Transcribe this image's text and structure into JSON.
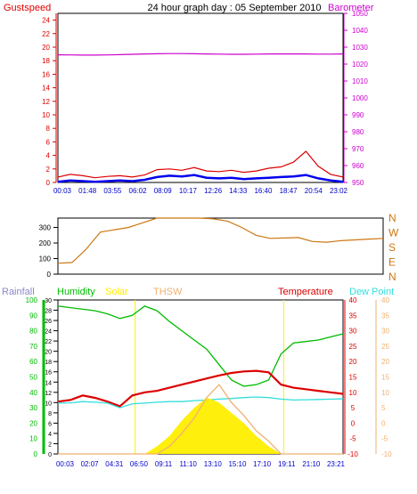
{
  "chart_data": [
    {
      "type": "line",
      "title": "24 hour graph day : 05 September 2010",
      "left_axis_label": "Gustspeed",
      "right_axis_label": "Barometer",
      "left_ticks": [
        "0",
        "2",
        "4",
        "6",
        "8",
        "10",
        "12",
        "14",
        "16",
        "18",
        "20",
        "22",
        "24"
      ],
      "right_ticks": [
        "950",
        "960",
        "970",
        "980",
        "990",
        "1000",
        "1010",
        "1020",
        "1030",
        "1040",
        "1050"
      ],
      "x_ticks": [
        "00:03",
        "01:48",
        "03:55",
        "06:02",
        "08:09",
        "10:17",
        "12:26",
        "14:33",
        "16:40",
        "18:47",
        "20:54",
        "23:02"
      ],
      "ylim_left": [
        0,
        25
      ],
      "ylim_right": [
        950,
        1050
      ],
      "colors": {
        "gust": "#dd0000",
        "wind": "#0000ee",
        "barometer": "#cc00cc"
      },
      "series": [
        {
          "key": "barometer",
          "values": [
            1025.5,
            1025.4,
            1025.3,
            1025.3,
            1025.4,
            1025.6,
            1025.8,
            1026,
            1026.1,
            1026.2,
            1026.2,
            1026.1,
            1026,
            1025.9,
            1025.8,
            1025.8,
            1025.9,
            1026,
            1026,
            1026,
            1026,
            1025.9,
            1025.9,
            1026
          ]
        },
        {
          "key": "gust",
          "values": [
            0.8,
            1.2,
            1.0,
            0.7,
            0.9,
            1.0,
            0.8,
            1.1,
            1.9,
            2.0,
            1.8,
            2.2,
            1.7,
            1.6,
            1.8,
            1.5,
            1.7,
            2.1,
            2.3,
            3.0,
            4.6,
            2.4,
            1.2,
            0.8
          ]
        },
        {
          "key": "wind",
          "values": [
            0.1,
            0.3,
            0.2,
            0.1,
            0.2,
            0.3,
            0.2,
            0.4,
            0.8,
            1.0,
            0.9,
            1.1,
            0.7,
            0.6,
            0.7,
            0.5,
            0.6,
            0.7,
            0.8,
            0.9,
            1.1,
            0.6,
            0.3,
            0.1
          ]
        }
      ]
    },
    {
      "type": "line",
      "left_ticks": [
        "0",
        "100",
        "200",
        "300"
      ],
      "direction_labels": [
        "N",
        "W",
        "S",
        "E",
        "N"
      ],
      "ylim": [
        0,
        360
      ],
      "color": "#cc7711",
      "series": [
        {
          "key": "direction",
          "values": [
            70,
            75,
            160,
            270,
            285,
            300,
            330,
            360,
            360,
            360,
            360,
            355,
            340,
            300,
            250,
            230,
            232,
            235,
            210,
            205,
            215,
            220,
            225,
            230
          ]
        }
      ]
    },
    {
      "type": "line",
      "legend": {
        "rainfall": "Rainfall",
        "humidity": "Humidity",
        "solar": "Solar",
        "thsw": "THSW",
        "temperature": "Temperature",
        "dewpoint": "Dew Point"
      },
      "left_ticks": [
        "0",
        "10",
        "20",
        "30",
        "40",
        "50",
        "60",
        "70",
        "80",
        "90",
        "100"
      ],
      "inner_ticks": [
        "0",
        "2",
        "4",
        "6",
        "8",
        "10",
        "12",
        "14",
        "16",
        "18",
        "20",
        "22",
        "24",
        "26",
        "28",
        "30"
      ],
      "right_ticks": [
        "-10",
        "-5",
        "0",
        "5",
        "10",
        "15",
        "20",
        "25",
        "30",
        "35",
        "40"
      ],
      "x_ticks": [
        "00:03",
        "02:07",
        "04:31",
        "06:50",
        "09:11",
        "11:10",
        "13:10",
        "15:10",
        "17:10",
        "19:11",
        "21:10",
        "23:21"
      ],
      "ylim_humidity": [
        0,
        100
      ],
      "ylim_temperature": [
        -10,
        40
      ],
      "colors": {
        "rainfall": "#8888cc",
        "humidity": "#00bb00",
        "solar": "#ffee00",
        "thsw": "#f0b070",
        "temperature": "#dd0000",
        "dewpoint": "#33dddd"
      },
      "series": [
        {
          "key": "humidity",
          "values": [
            96,
            95,
            94,
            93,
            91,
            88,
            90,
            96,
            93,
            86,
            80,
            74,
            68,
            58,
            48,
            44,
            45,
            48,
            65,
            72,
            73,
            74,
            76,
            78
          ]
        },
        {
          "key": "temperature",
          "values": [
            7.0,
            7.5,
            9.0,
            8.2,
            7.0,
            5.5,
            9.0,
            10.0,
            10.5,
            11.5,
            12.5,
            13.5,
            14.5,
            15.5,
            16.3,
            16.8,
            17.0,
            16.5,
            12.5,
            11.5,
            11.0,
            10.5,
            10.0,
            9.5
          ]
        },
        {
          "key": "dewpoint",
          "values": [
            6.5,
            6.6,
            7.0,
            6.8,
            6.5,
            5.0,
            6.3,
            6.5,
            6.8,
            7.0,
            7.0,
            7.3,
            7.5,
            7.8,
            8.0,
            8.3,
            8.5,
            8.3,
            7.8,
            7.5,
            7.6,
            7.7,
            7.8,
            7.9
          ]
        },
        {
          "key": "solar",
          "values": [
            0,
            0,
            0,
            0,
            0,
            0,
            0,
            0,
            1.5,
            3.5,
            6.5,
            9.0,
            11.0,
            10.0,
            8.0,
            6.0,
            3.5,
            1.5,
            0,
            0,
            0,
            0,
            0,
            0
          ]
        },
        {
          "key": "thsw",
          "values": [
            0,
            0,
            0,
            0,
            0,
            0,
            0,
            0,
            0,
            1.5,
            4.0,
            7.0,
            11.0,
            13.5,
            10.0,
            7.5,
            4.5,
            2.5,
            0,
            0,
            0,
            0,
            0,
            0
          ]
        }
      ],
      "markers_hours": [
        6.5,
        19.0
      ]
    }
  ]
}
